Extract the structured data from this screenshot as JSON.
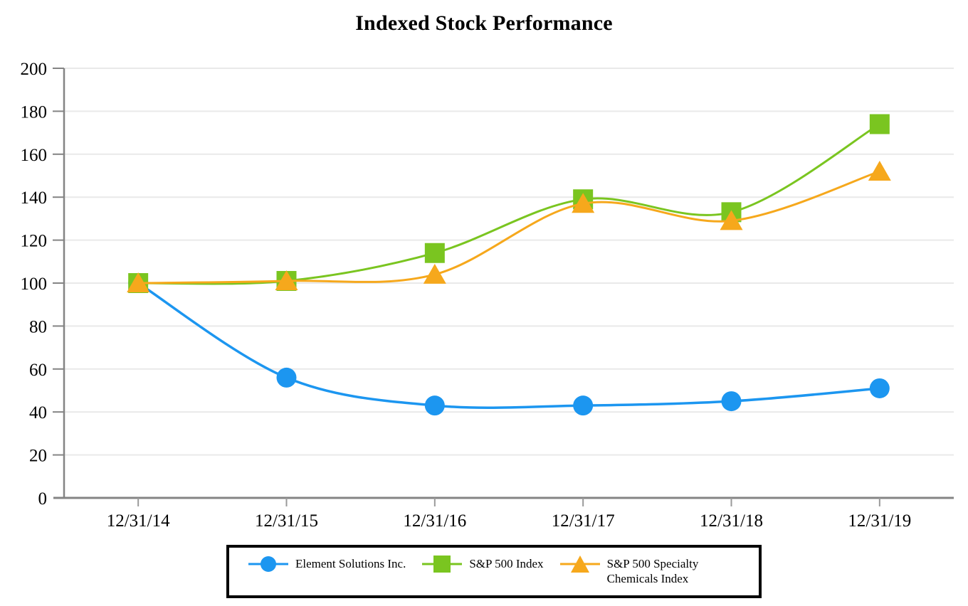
{
  "chart_data": {
    "type": "line",
    "title": "Indexed Stock Performance",
    "categories": [
      "12/31/14",
      "12/31/15",
      "12/31/16",
      "12/31/17",
      "12/31/18",
      "12/31/19"
    ],
    "series": [
      {
        "name": "Element Solutions Inc.",
        "marker": "circle",
        "color": "#1c96f0",
        "values": [
          100,
          56,
          43,
          43,
          45,
          51
        ]
      },
      {
        "name": "S&P 500 Index",
        "marker": "square",
        "color": "#7ac520",
        "values": [
          100,
          101,
          114,
          139,
          133,
          174
        ]
      },
      {
        "name": "S&P 500 Specialty Chemicals Index",
        "marker": "triangle",
        "color": "#f6a81c",
        "values": [
          100,
          101,
          104,
          137,
          129,
          152
        ]
      }
    ],
    "xlabel": "",
    "ylabel": "",
    "ylim": [
      0,
      200
    ],
    "y_ticks": [
      0,
      20,
      40,
      60,
      80,
      100,
      120,
      140,
      160,
      180,
      200
    ],
    "grid": true,
    "legend_position": "bottom",
    "axis_color": "#848484",
    "grid_color": "#e9e9e9"
  }
}
